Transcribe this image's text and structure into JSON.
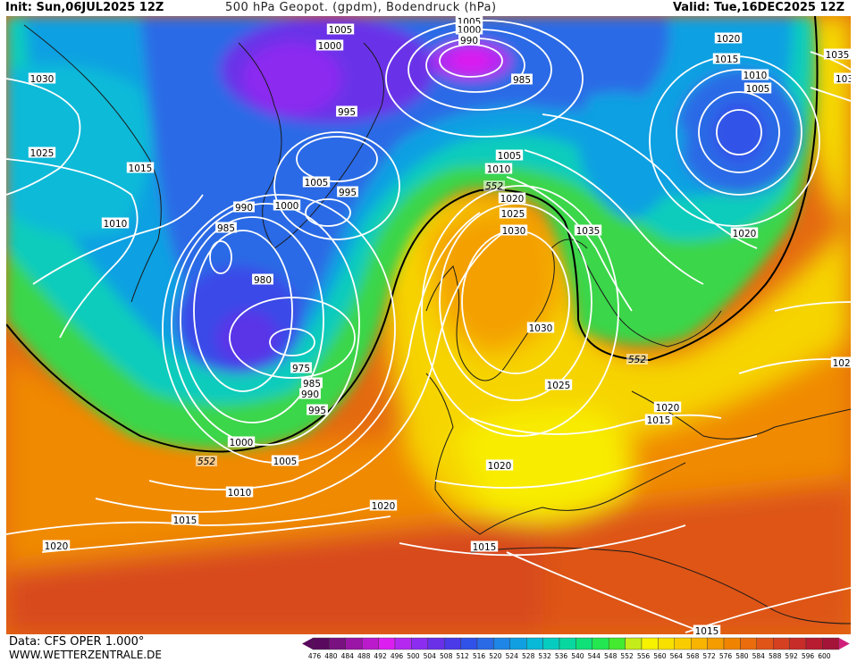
{
  "header": {
    "init": "Init: Sun,06JUL2025 12Z",
    "title": "500 hPa Geopot. (gpdm), Bodendruck (hPa)",
    "valid": "Valid: Tue,16DEC2025 12Z"
  },
  "footer": {
    "data_source": "Data: CFS OPER 1.000°",
    "website": "WWW.WETTERZENTRALE.DE"
  },
  "legend": {
    "values": [
      "476",
      "480",
      "484",
      "488",
      "492",
      "496",
      "500",
      "504",
      "508",
      "512",
      "516",
      "520",
      "524",
      "528",
      "532",
      "536",
      "540",
      "544",
      "548",
      "552",
      "556",
      "560",
      "564",
      "568",
      "572",
      "576",
      "580",
      "584",
      "588",
      "592",
      "596",
      "600"
    ],
    "colors": [
      "#5a0a5e",
      "#7a1180",
      "#9b15a6",
      "#bb1acc",
      "#dc1ff0",
      "#b428f0",
      "#8c2cf0",
      "#6a30e8",
      "#4a3ae8",
      "#3152e8",
      "#2a6ae6",
      "#1e86e6",
      "#10a0e2",
      "#08bad8",
      "#06ccc0",
      "#08d8a0",
      "#10e078",
      "#24e650",
      "#44ea30",
      "#c4ec1a",
      "#f6f200",
      "#f8e000",
      "#f8cc00",
      "#f8b400",
      "#f49c00",
      "#f08400",
      "#ea6c0c",
      "#e05418",
      "#d44020",
      "#c82c28",
      "#b81c30",
      "#a41438"
    ]
  },
  "isobars": [
    {
      "id": "i1",
      "label": "1030"
    },
    {
      "id": "i2",
      "label": "1025"
    },
    {
      "id": "i3",
      "label": "1015"
    },
    {
      "id": "i4",
      "label": "1010"
    },
    {
      "id": "i5",
      "label": "1005"
    },
    {
      "id": "i6",
      "label": "1000"
    },
    {
      "id": "i7",
      "label": "995"
    },
    {
      "id": "i8",
      "label": "1005"
    },
    {
      "id": "i9",
      "label": "1000"
    },
    {
      "id": "i10",
      "label": "995"
    },
    {
      "id": "i11",
      "label": "990"
    },
    {
      "id": "i12",
      "label": "985"
    },
    {
      "id": "i13",
      "label": "980"
    },
    {
      "id": "i14",
      "label": "975"
    },
    {
      "id": "i15",
      "label": "985"
    },
    {
      "id": "i16",
      "label": "990"
    },
    {
      "id": "i17",
      "label": "995"
    },
    {
      "id": "i18",
      "label": "1000"
    },
    {
      "id": "i19",
      "label": "1005"
    },
    {
      "id": "i20",
      "label": "1010"
    },
    {
      "id": "i21",
      "label": "1015"
    },
    {
      "id": "i22",
      "label": "1020"
    },
    {
      "id": "i23",
      "label": "1005"
    },
    {
      "id": "i24",
      "label": "1000"
    },
    {
      "id": "i25",
      "label": "995"
    },
    {
      "id": "i26",
      "label": "990"
    },
    {
      "id": "i27",
      "label": "985"
    },
    {
      "id": "i28",
      "label": "1005"
    },
    {
      "id": "i29",
      "label": "1010"
    },
    {
      "id": "i30",
      "label": "1020"
    },
    {
      "id": "i31",
      "label": "1025"
    },
    {
      "id": "i32",
      "label": "1030"
    },
    {
      "id": "i33",
      "label": "1035"
    },
    {
      "id": "i34",
      "label": "1030"
    },
    {
      "id": "i35",
      "label": "1025"
    },
    {
      "id": "i36",
      "label": "1020"
    },
    {
      "id": "i37",
      "label": "1015"
    },
    {
      "id": "i38",
      "label": "1020"
    },
    {
      "id": "i39",
      "label": "1015"
    },
    {
      "id": "i40",
      "label": "1020"
    },
    {
      "id": "i41",
      "label": "1015"
    },
    {
      "id": "i42",
      "label": "1010"
    },
    {
      "id": "i43",
      "label": "1005"
    },
    {
      "id": "i44",
      "label": "1020"
    },
    {
      "id": "i45",
      "label": "1035"
    },
    {
      "id": "i46",
      "label": "103"
    },
    {
      "id": "i47",
      "label": "1020"
    },
    {
      "id": "i48",
      "label": "1020"
    },
    {
      "id": "i49",
      "label": "1015"
    },
    {
      "id": "i50",
      "label": "1015"
    },
    {
      "id": "i51",
      "label": "1020"
    },
    {
      "id": "i52",
      "label": "1020"
    }
  ],
  "contour_552_labels": [
    "552",
    "552",
    "552"
  ]
}
